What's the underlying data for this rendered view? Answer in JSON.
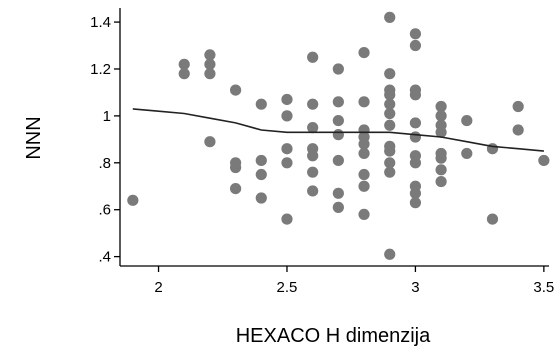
{
  "chart_data": {
    "type": "scatter",
    "title": "",
    "xlabel": "HEXACO H dimenzija",
    "ylabel": "NNN",
    "xlim": [
      1.85,
      3.52
    ],
    "ylim": [
      0.36,
      1.46
    ],
    "x_ticks": [
      2,
      2.5,
      3,
      3.5
    ],
    "x_tick_labels": [
      "2",
      "2.5",
      "3",
      "3.5"
    ],
    "y_ticks": [
      0.4,
      0.6,
      0.8,
      1.0,
      1.2,
      1.4
    ],
    "y_tick_labels": [
      ".4",
      ".6",
      ".8",
      "1",
      "1.2",
      "1.4"
    ],
    "grid": false,
    "legend": "none",
    "colors": {
      "points": "#7a7a7a",
      "line": "#222222",
      "axis": "#000000"
    },
    "series": [
      {
        "type": "scatter",
        "points": [
          [
            1.9,
            0.64
          ],
          [
            2.1,
            1.22
          ],
          [
            2.1,
            1.18
          ],
          [
            2.2,
            1.26
          ],
          [
            2.2,
            1.22
          ],
          [
            2.2,
            1.18
          ],
          [
            2.2,
            0.89
          ],
          [
            2.3,
            1.11
          ],
          [
            2.3,
            0.8
          ],
          [
            2.3,
            0.78
          ],
          [
            2.3,
            0.69
          ],
          [
            2.4,
            1.05
          ],
          [
            2.4,
            0.81
          ],
          [
            2.4,
            0.75
          ],
          [
            2.4,
            0.65
          ],
          [
            2.5,
            1.07
          ],
          [
            2.5,
            1.0
          ],
          [
            2.5,
            0.86
          ],
          [
            2.5,
            0.8
          ],
          [
            2.5,
            0.56
          ],
          [
            2.6,
            1.25
          ],
          [
            2.6,
            1.05
          ],
          [
            2.6,
            0.95
          ],
          [
            2.6,
            0.86
          ],
          [
            2.6,
            0.83
          ],
          [
            2.6,
            0.76
          ],
          [
            2.6,
            0.68
          ],
          [
            2.7,
            1.2
          ],
          [
            2.7,
            1.06
          ],
          [
            2.7,
            0.98
          ],
          [
            2.7,
            0.92
          ],
          [
            2.7,
            0.81
          ],
          [
            2.7,
            0.67
          ],
          [
            2.7,
            0.61
          ],
          [
            2.8,
            1.27
          ],
          [
            2.8,
            1.06
          ],
          [
            2.8,
            0.94
          ],
          [
            2.8,
            0.91
          ],
          [
            2.8,
            0.88
          ],
          [
            2.8,
            0.84
          ],
          [
            2.8,
            0.75
          ],
          [
            2.8,
            0.7
          ],
          [
            2.8,
            0.58
          ],
          [
            2.9,
            1.42
          ],
          [
            2.9,
            1.18
          ],
          [
            2.9,
            1.11
          ],
          [
            2.9,
            1.09
          ],
          [
            2.9,
            1.05
          ],
          [
            2.9,
            1.01
          ],
          [
            2.9,
            0.96
          ],
          [
            2.9,
            0.87
          ],
          [
            2.9,
            0.85
          ],
          [
            2.9,
            0.8
          ],
          [
            2.9,
            0.76
          ],
          [
            2.9,
            0.41
          ],
          [
            3.0,
            1.35
          ],
          [
            3.0,
            1.3
          ],
          [
            3.0,
            1.11
          ],
          [
            3.0,
            1.09
          ],
          [
            3.0,
            0.97
          ],
          [
            3.0,
            0.91
          ],
          [
            3.0,
            0.83
          ],
          [
            3.0,
            0.8
          ],
          [
            3.0,
            0.7
          ],
          [
            3.0,
            0.67
          ],
          [
            3.0,
            0.63
          ],
          [
            3.1,
            1.04
          ],
          [
            3.1,
            1.0
          ],
          [
            3.1,
            0.96
          ],
          [
            3.1,
            0.93
          ],
          [
            3.1,
            0.84
          ],
          [
            3.1,
            0.82
          ],
          [
            3.1,
            0.77
          ],
          [
            3.1,
            0.72
          ],
          [
            3.2,
            0.98
          ],
          [
            3.2,
            0.84
          ],
          [
            3.3,
            0.86
          ],
          [
            3.3,
            0.56
          ],
          [
            3.4,
            1.04
          ],
          [
            3.4,
            0.94
          ],
          [
            3.5,
            0.81
          ]
        ]
      },
      {
        "type": "line",
        "points": [
          [
            1.9,
            1.03
          ],
          [
            2.0,
            1.02
          ],
          [
            2.1,
            1.01
          ],
          [
            2.2,
            0.99
          ],
          [
            2.3,
            0.97
          ],
          [
            2.4,
            0.94
          ],
          [
            2.5,
            0.93
          ],
          [
            2.6,
            0.93
          ],
          [
            2.7,
            0.93
          ],
          [
            2.8,
            0.93
          ],
          [
            2.9,
            0.93
          ],
          [
            3.0,
            0.92
          ],
          [
            3.1,
            0.91
          ],
          [
            3.2,
            0.89
          ],
          [
            3.3,
            0.87
          ],
          [
            3.4,
            0.86
          ],
          [
            3.5,
            0.85
          ]
        ]
      }
    ]
  }
}
